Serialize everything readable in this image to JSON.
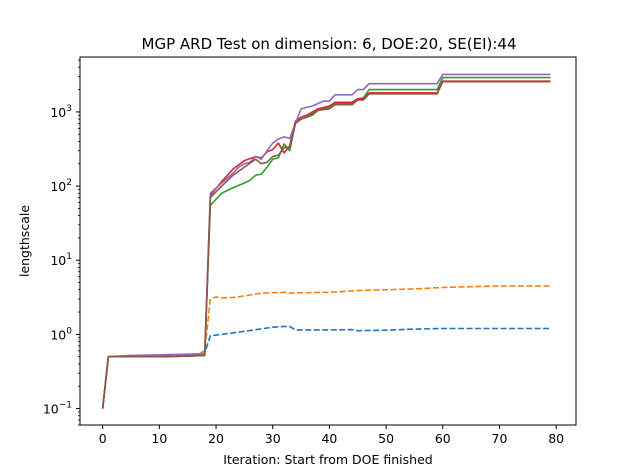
{
  "chart_data": {
    "type": "line",
    "title": "MGP ARD Test on dimension: 6, DOE:20, SE(EI):44",
    "xlabel": "Iteration: Start from DOE finished",
    "ylabel": "lengthscale",
    "xlim": [
      -4,
      83.5
    ],
    "ylim": [
      0.06,
      5500
    ],
    "yscale": "log",
    "grid": false,
    "x_ticks": [
      0,
      10,
      20,
      30,
      40,
      50,
      60,
      70,
      80
    ],
    "x_tick_labels": [
      "0",
      "10",
      "20",
      "30",
      "40",
      "50",
      "60",
      "70",
      "80"
    ],
    "y_ticks": [
      0.1,
      1,
      10,
      100,
      1000
    ],
    "y_tick_labels": [
      {
        "base": "10",
        "exp": "−1"
      },
      {
        "base": "10",
        "exp": "0"
      },
      {
        "base": "10",
        "exp": "1"
      },
      {
        "base": "10",
        "exp": "2"
      },
      {
        "base": "10",
        "exp": "3"
      }
    ],
    "series": [
      {
        "color": "#1f77b4",
        "dash": "dashed",
        "points": [
          [
            0,
            0.1
          ],
          [
            1,
            0.5
          ],
          [
            5,
            0.5
          ],
          [
            10,
            0.51
          ],
          [
            15,
            0.52
          ],
          [
            17,
            0.53
          ],
          [
            18,
            0.56
          ],
          [
            19,
            0.96
          ],
          [
            20,
            0.98
          ],
          [
            21,
            1.0
          ],
          [
            25,
            1.1
          ],
          [
            30,
            1.25
          ],
          [
            32,
            1.28
          ],
          [
            33,
            1.28
          ],
          [
            34,
            1.15
          ],
          [
            40,
            1.15
          ],
          [
            44,
            1.16
          ],
          [
            45,
            1.12
          ],
          [
            50,
            1.14
          ],
          [
            55,
            1.18
          ],
          [
            60,
            1.2
          ],
          [
            70,
            1.2
          ],
          [
            79,
            1.2
          ]
        ]
      },
      {
        "color": "#ff7f0e",
        "dash": "dashed",
        "points": [
          [
            0,
            0.1
          ],
          [
            1,
            0.5
          ],
          [
            5,
            0.52
          ],
          [
            10,
            0.52
          ],
          [
            15,
            0.54
          ],
          [
            17,
            0.55
          ],
          [
            18,
            0.6
          ],
          [
            19,
            3.0
          ],
          [
            20,
            3.2
          ],
          [
            21,
            3.1
          ],
          [
            23,
            3.15
          ],
          [
            25,
            3.3
          ],
          [
            28,
            3.6
          ],
          [
            30,
            3.65
          ],
          [
            32,
            3.7
          ],
          [
            33,
            3.6
          ],
          [
            35,
            3.65
          ],
          [
            40,
            3.7
          ],
          [
            45,
            3.9
          ],
          [
            50,
            4.0
          ],
          [
            55,
            4.1
          ],
          [
            60,
            4.3
          ],
          [
            65,
            4.4
          ],
          [
            70,
            4.5
          ],
          [
            79,
            4.5
          ]
        ]
      },
      {
        "color": "#2ca02c",
        "dash": "solid",
        "points": [
          [
            0,
            0.1
          ],
          [
            1,
            0.5
          ],
          [
            5,
            0.5
          ],
          [
            10,
            0.5
          ],
          [
            15,
            0.51
          ],
          [
            18,
            0.52
          ],
          [
            19,
            55
          ],
          [
            21,
            80
          ],
          [
            23,
            95
          ],
          [
            25,
            110
          ],
          [
            26,
            120
          ],
          [
            27,
            140
          ],
          [
            28,
            145
          ],
          [
            29,
            180
          ],
          [
            30,
            230
          ],
          [
            31,
            240
          ],
          [
            32,
            370
          ],
          [
            33,
            300
          ],
          [
            34,
            700
          ],
          [
            35,
            800
          ],
          [
            36,
            850
          ],
          [
            37,
            900
          ],
          [
            38,
            1050
          ],
          [
            39,
            1100
          ],
          [
            40,
            1150
          ],
          [
            41,
            1300
          ],
          [
            43,
            1300
          ],
          [
            44,
            1300
          ],
          [
            45,
            1500
          ],
          [
            46,
            1550
          ],
          [
            47,
            2000
          ],
          [
            59,
            2000
          ],
          [
            60,
            2900
          ],
          [
            79,
            2900
          ]
        ]
      },
      {
        "color": "#d62728",
        "dash": "solid",
        "points": [
          [
            0,
            0.1
          ],
          [
            1,
            0.5
          ],
          [
            5,
            0.5
          ],
          [
            10,
            0.5
          ],
          [
            15,
            0.51
          ],
          [
            18,
            0.52
          ],
          [
            19,
            75
          ],
          [
            21,
            115
          ],
          [
            23,
            170
          ],
          [
            25,
            220
          ],
          [
            27,
            250
          ],
          [
            28,
            240
          ],
          [
            29,
            290
          ],
          [
            30,
            310
          ],
          [
            31,
            380
          ],
          [
            32,
            280
          ],
          [
            33,
            350
          ],
          [
            34,
            750
          ],
          [
            35,
            850
          ],
          [
            36,
            900
          ],
          [
            37,
            1000
          ],
          [
            38,
            1100
          ],
          [
            40,
            1200
          ],
          [
            41,
            1350
          ],
          [
            44,
            1350
          ],
          [
            45,
            1500
          ],
          [
            46,
            1500
          ],
          [
            47,
            1800
          ],
          [
            59,
            1800
          ],
          [
            60,
            2600
          ],
          [
            79,
            2600
          ]
        ]
      },
      {
        "color": "#9467bd",
        "dash": "solid",
        "points": [
          [
            0,
            0.1
          ],
          [
            1,
            0.5
          ],
          [
            5,
            0.52
          ],
          [
            10,
            0.53
          ],
          [
            15,
            0.54
          ],
          [
            18,
            0.55
          ],
          [
            19,
            80
          ],
          [
            21,
            110
          ],
          [
            23,
            150
          ],
          [
            24,
            180
          ],
          [
            25,
            200
          ],
          [
            26,
            210
          ],
          [
            27,
            250
          ],
          [
            28,
            230
          ],
          [
            29,
            300
          ],
          [
            30,
            380
          ],
          [
            31,
            430
          ],
          [
            32,
            460
          ],
          [
            33,
            440
          ],
          [
            34,
            700
          ],
          [
            35,
            1100
          ],
          [
            36,
            1150
          ],
          [
            37,
            1200
          ],
          [
            38,
            1300
          ],
          [
            39,
            1400
          ],
          [
            40,
            1400
          ],
          [
            41,
            1700
          ],
          [
            44,
            1700
          ],
          [
            45,
            2000
          ],
          [
            46,
            2000
          ],
          [
            47,
            2400
          ],
          [
            59,
            2400
          ],
          [
            60,
            3200
          ],
          [
            79,
            3200
          ]
        ]
      },
      {
        "color": "#8c564b",
        "dash": "solid",
        "points": [
          [
            0,
            0.1
          ],
          [
            1,
            0.5
          ],
          [
            5,
            0.5
          ],
          [
            10,
            0.5
          ],
          [
            15,
            0.51
          ],
          [
            18,
            0.52
          ],
          [
            19,
            70
          ],
          [
            21,
            100
          ],
          [
            23,
            140
          ],
          [
            25,
            180
          ],
          [
            27,
            230
          ],
          [
            28,
            200
          ],
          [
            29,
            210
          ],
          [
            30,
            250
          ],
          [
            31,
            260
          ],
          [
            32,
            330
          ],
          [
            33,
            330
          ],
          [
            34,
            700
          ],
          [
            35,
            800
          ],
          [
            36,
            850
          ],
          [
            37,
            950
          ],
          [
            38,
            1050
          ],
          [
            40,
            1100
          ],
          [
            41,
            1250
          ],
          [
            44,
            1250
          ],
          [
            45,
            1450
          ],
          [
            46,
            1450
          ],
          [
            47,
            1750
          ],
          [
            59,
            1750
          ],
          [
            60,
            2550
          ],
          [
            79,
            2550
          ]
        ]
      }
    ]
  }
}
